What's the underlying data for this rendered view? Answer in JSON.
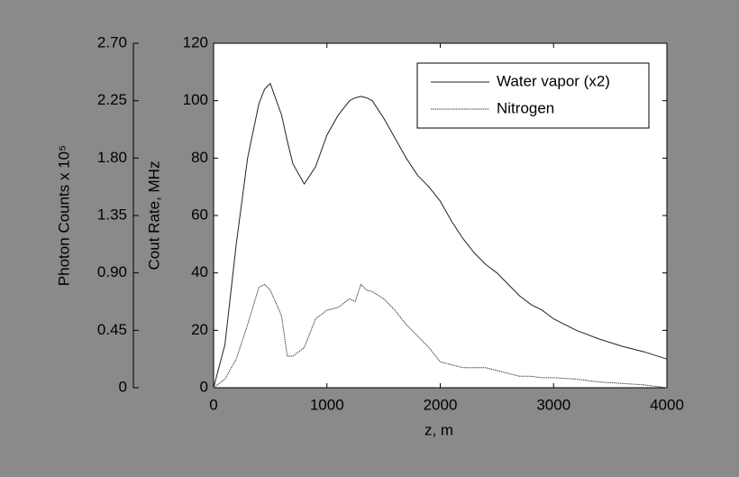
{
  "chart_data": {
    "type": "line",
    "xlabel": "z, m",
    "ylabel": "Cout Rate, MHz",
    "y2label": "Photon Counts x 10⁵",
    "x": [
      0,
      100,
      200,
      300,
      400,
      450,
      500,
      600,
      650,
      700,
      800,
      900,
      1000,
      1100,
      1200,
      1250,
      1300,
      1350,
      1400,
      1500,
      1600,
      1700,
      1800,
      1900,
      2000,
      2100,
      2200,
      2300,
      2400,
      2500,
      2600,
      2700,
      2800,
      2900,
      3000,
      3200,
      3400,
      3600,
      3800,
      4000
    ],
    "series": [
      {
        "name": "Water vapor (x2)",
        "color": "#222222",
        "values": [
          0,
          15,
          50,
          80,
          99,
          104,
          106,
          95,
          86,
          78,
          71,
          77,
          88,
          95,
          100,
          101,
          101.5,
          101,
          100,
          94,
          87,
          80,
          74,
          70,
          65,
          58,
          52,
          47,
          43,
          40,
          36,
          32,
          29,
          27,
          24,
          20,
          17,
          14.5,
          12.5,
          10
        ]
      },
      {
        "name": "Nitrogen",
        "color": "#444444",
        "dash": true,
        "values": [
          0,
          3,
          10,
          22,
          35,
          36,
          34,
          25,
          11,
          11,
          14,
          24,
          27,
          28,
          31,
          30,
          36,
          34,
          33.5,
          31,
          27,
          22,
          18,
          14,
          9,
          8,
          7,
          7,
          7,
          6,
          5,
          4,
          4,
          3.5,
          3.5,
          3,
          2,
          1.5,
          1,
          0
        ]
      }
    ],
    "xlim": [
      0,
      4000
    ],
    "xticks": [
      0,
      1000,
      2000,
      3000,
      4000
    ],
    "ylim": [
      0,
      120
    ],
    "yticks": [
      0,
      20,
      40,
      60,
      80,
      100,
      120
    ],
    "y2lim": [
      0,
      2.7
    ],
    "y2ticks": [
      0,
      0.45,
      {
        "value": 0.9,
        "label": "0.90"
      },
      1.35,
      {
        "value": 1.8,
        "label": "1.80"
      },
      2.25,
      {
        "value": 2.7,
        "label": "2.70"
      }
    ],
    "legend": "upper-right"
  }
}
